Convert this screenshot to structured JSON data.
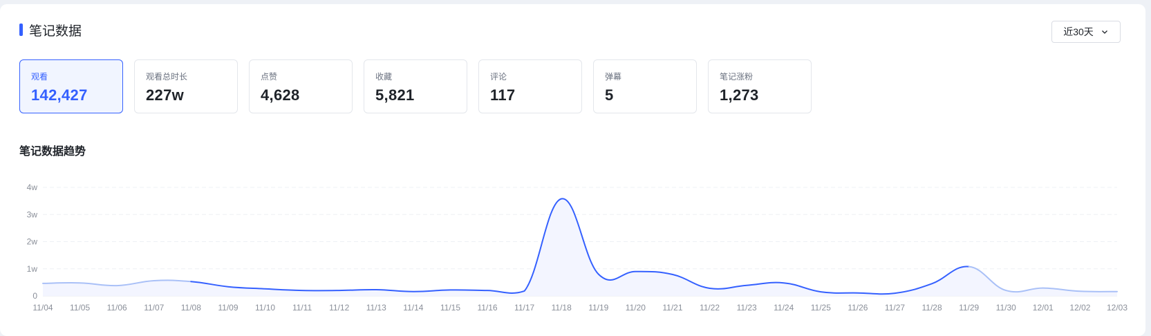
{
  "header": {
    "title": "笔记数据",
    "range_label": "近30天"
  },
  "metrics": [
    {
      "label": "观看",
      "value": "142,427",
      "active": true
    },
    {
      "label": "观看总时长",
      "value": "227w"
    },
    {
      "label": "点赞",
      "value": "4,628"
    },
    {
      "label": "收藏",
      "value": "5,821"
    },
    {
      "label": "评论",
      "value": "117"
    },
    {
      "label": "弹幕",
      "value": "5"
    },
    {
      "label": "笔记涨粉",
      "value": "1,273"
    }
  ],
  "trend": {
    "title": "笔记数据趋势"
  },
  "colors": {
    "accent": "#3460ff",
    "faded_line": "#a9c0f7",
    "fill": "#f3f5ff"
  },
  "chart_data": {
    "type": "line",
    "categories": [
      "11/04",
      "11/05",
      "11/06",
      "11/07",
      "11/08",
      "11/09",
      "11/10",
      "11/11",
      "11/12",
      "11/13",
      "11/14",
      "11/15",
      "11/16",
      "11/17",
      "11/18",
      "11/19",
      "11/20",
      "11/21",
      "11/22",
      "11/23",
      "11/24",
      "11/25",
      "11/26",
      "11/27",
      "11/28",
      "11/29",
      "11/30",
      "12/01",
      "12/02",
      "12/03"
    ],
    "series": [
      {
        "values": [
          4600,
          4800,
          3800,
          5600,
          5300,
          3400,
          2600,
          2000,
          2000,
          2300,
          1600,
          2200,
          2000,
          1800,
          35800,
          8000,
          9000,
          7900,
          2800,
          3900,
          4800,
          1500,
          1100,
          1000,
          4500,
          10800,
          2000,
          2900,
          1700,
          1600
        ]
      }
    ],
    "y_ticks": [
      "0",
      "1w",
      "2w",
      "3w",
      "4w"
    ],
    "ylim": [
      0,
      40000
    ],
    "grid": true,
    "faded_ranges": [
      [
        0,
        4
      ],
      [
        25,
        29
      ]
    ]
  }
}
